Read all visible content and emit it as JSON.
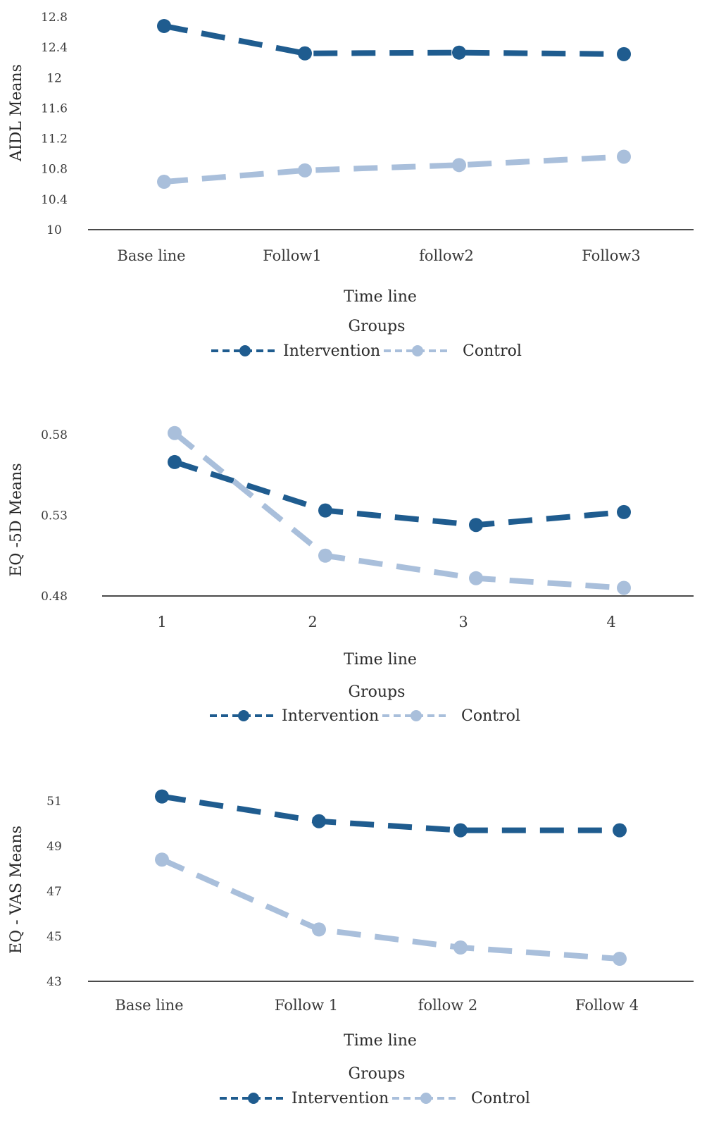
{
  "colors": {
    "intervention": "#1f5c8f",
    "control": "#a9bfdb",
    "axis": "#4a4a4a"
  },
  "chart_data": [
    {
      "type": "line",
      "title": "",
      "xlabel": "Time line",
      "ylabel": "AIDL Means",
      "categories": [
        "Base line",
        "Follow1",
        "follow2",
        "Follow3"
      ],
      "ylim": [
        10,
        12.8
      ],
      "yticks": [
        "10",
        "10.4",
        "10.8",
        "11.2",
        "11.6",
        "12",
        "12.4",
        "12.8"
      ],
      "legend_title": "Groups",
      "legend_position": "bottom",
      "series": [
        {
          "name": "Intervention",
          "values": [
            12.68,
            12.32,
            12.33,
            12.31
          ]
        },
        {
          "name": "Control",
          "values": [
            10.63,
            10.78,
            10.85,
            10.96
          ]
        }
      ]
    },
    {
      "type": "line",
      "title": "",
      "xlabel": "Time line",
      "ylabel": "EQ  -5D Means",
      "categories": [
        "1",
        "2",
        "3",
        "4"
      ],
      "ylim": [
        0.48,
        0.58
      ],
      "yticks": [
        "0.48",
        "0.53",
        "0.58"
      ],
      "legend_title": "Groups",
      "legend_position": "bottom",
      "series": [
        {
          "name": "Intervention",
          "values": [
            0.563,
            0.533,
            0.524,
            0.532
          ]
        },
        {
          "name": "Control",
          "values": [
            0.581,
            0.505,
            0.491,
            0.485
          ]
        }
      ]
    },
    {
      "type": "line",
      "title": "",
      "xlabel": "Time line",
      "ylabel": "EQ  - VAS Means",
      "categories": [
        "Base line",
        "Follow 1",
        "follow 2",
        "Follow 4"
      ],
      "ylim": [
        43,
        51
      ],
      "yticks": [
        "43",
        "45",
        "47",
        "49",
        "51"
      ],
      "legend_title": "Groups",
      "legend_position": "bottom",
      "series": [
        {
          "name": "Intervention",
          "values": [
            51.2,
            50.1,
            49.7,
            49.7
          ]
        },
        {
          "name": "Control",
          "values": [
            48.4,
            45.3,
            44.5,
            44.0
          ]
        }
      ]
    }
  ]
}
